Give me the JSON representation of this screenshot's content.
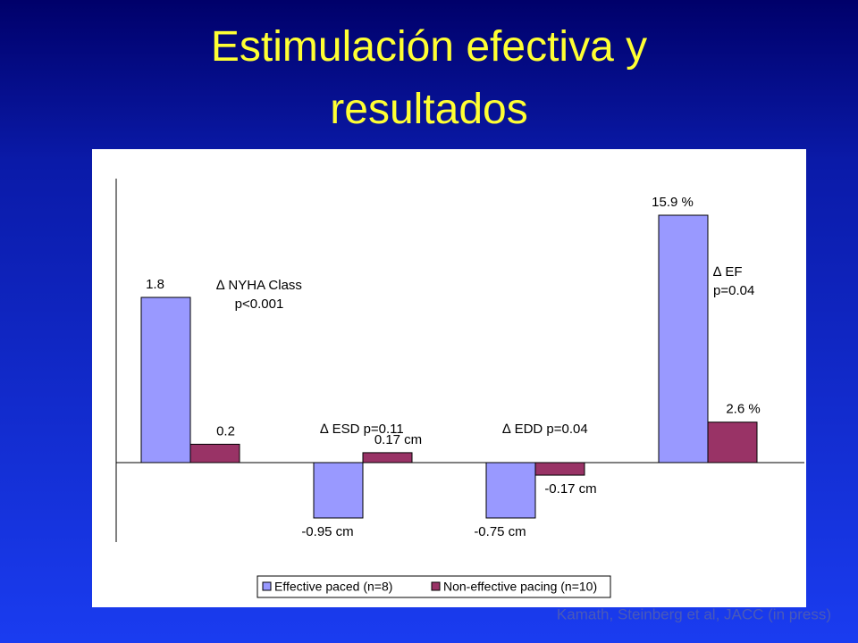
{
  "chart_data": {
    "type": "bar",
    "title": "Estimulación efectiva y resultados",
    "categories": [
      null,
      null,
      null,
      null
    ],
    "series": [
      {
        "name": "Effective paced (n=8)",
        "color": "#9999ff",
        "values": [
          1.8,
          -0.95,
          -0.75,
          15.9
        ],
        "value_labels": [
          "1.8",
          "-0.95 cm",
          "-0.75 cm",
          "15.9 %"
        ]
      },
      {
        "name": "Non-effective pacing (n=10)",
        "color": "#993366",
        "values": [
          0.2,
          0.17,
          -0.17,
          2.6
        ],
        "value_labels": [
          "0.2",
          "0.17 cm",
          "-0.17 cm",
          "2.6 %"
        ]
      }
    ],
    "annotations": [
      [
        "∆ NYHA Class",
        "p<0.001"
      ],
      [
        "∆ ESD p=0.11"
      ],
      [
        "∆ EDD p=0.04"
      ],
      [
        "∆ EF",
        "p=0.04"
      ]
    ],
    "legend": "bottom",
    "source": "Kamath, Steinberg et al, JACC (in press)"
  }
}
